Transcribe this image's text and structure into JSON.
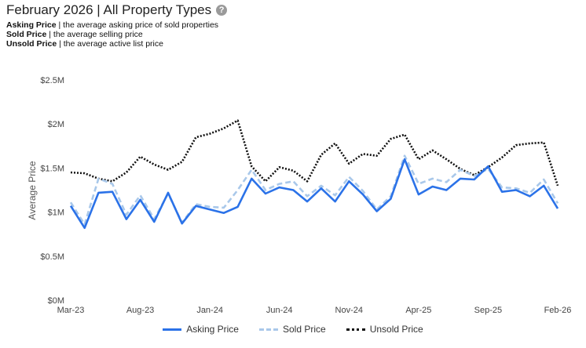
{
  "header": {
    "title": "February 2026 | All Property Types",
    "help_icon": "question-circle-icon"
  },
  "definitions": [
    {
      "term": "Asking Price",
      "desc": " | the average asking price of sold properties"
    },
    {
      "term": "Sold Price",
      "desc": " | the average selling price"
    },
    {
      "term": "Unsold Price",
      "desc": " | the average active list price"
    }
  ],
  "chart_data": {
    "type": "line",
    "ylabel": "Average Price",
    "ylim": [
      0,
      2500000
    ],
    "y_ticks": [
      {
        "value": 0,
        "label": "$0M"
      },
      {
        "value": 500000,
        "label": "$0.5M"
      },
      {
        "value": 1000000,
        "label": "$1M"
      },
      {
        "value": 1500000,
        "label": "$1.5M"
      },
      {
        "value": 2000000,
        "label": "$2M"
      },
      {
        "value": 2500000,
        "label": "$2.5M"
      }
    ],
    "x": [
      "Mar-23",
      "Apr-23",
      "May-23",
      "Jun-23",
      "Jul-23",
      "Aug-23",
      "Sep-23",
      "Oct-23",
      "Nov-23",
      "Dec-23",
      "Jan-24",
      "Feb-24",
      "Mar-24",
      "Apr-24",
      "May-24",
      "Jun-24",
      "Jul-24",
      "Aug-24",
      "Sep-24",
      "Oct-24",
      "Nov-24",
      "Dec-24",
      "Jan-25",
      "Feb-25",
      "Mar-25",
      "Apr-25",
      "May-25",
      "Jun-25",
      "Jul-25",
      "Aug-25",
      "Sep-25",
      "Oct-25",
      "Nov-25",
      "Dec-25",
      "Jan-26",
      "Feb-26"
    ],
    "x_tick_labels": [
      "Mar-23",
      "Aug-23",
      "Jan-24",
      "Jun-24",
      "Nov-24",
      "Apr-25",
      "Sep-25",
      "Feb-26"
    ],
    "series": [
      {
        "name": "Asking Price",
        "color": "#2b72e8",
        "style": "solid",
        "values": [
          1070000,
          820000,
          1220000,
          1230000,
          920000,
          1140000,
          890000,
          1220000,
          870000,
          1070000,
          1030000,
          990000,
          1060000,
          1380000,
          1210000,
          1280000,
          1250000,
          1120000,
          1270000,
          1120000,
          1350000,
          1200000,
          1010000,
          1150000,
          1600000,
          1200000,
          1290000,
          1250000,
          1380000,
          1370000,
          1520000,
          1230000,
          1250000,
          1180000,
          1300000,
          1040000
        ]
      },
      {
        "name": "Sold Price",
        "color": "#a9c8ea",
        "style": "dashed",
        "values": [
          1110000,
          860000,
          1380000,
          1320000,
          970000,
          1190000,
          920000,
          1210000,
          880000,
          1090000,
          1060000,
          1050000,
          1250000,
          1480000,
          1250000,
          1320000,
          1350000,
          1180000,
          1300000,
          1190000,
          1400000,
          1240000,
          1030000,
          1180000,
          1640000,
          1320000,
          1380000,
          1340000,
          1480000,
          1410000,
          1490000,
          1280000,
          1270000,
          1220000,
          1370000,
          1100000
        ]
      },
      {
        "name": "Unsold Price",
        "color": "#111111",
        "style": "dotted",
        "values": [
          1450000,
          1440000,
          1380000,
          1350000,
          1450000,
          1630000,
          1540000,
          1480000,
          1570000,
          1850000,
          1890000,
          1950000,
          2040000,
          1520000,
          1350000,
          1510000,
          1470000,
          1350000,
          1650000,
          1780000,
          1550000,
          1660000,
          1640000,
          1830000,
          1880000,
          1600000,
          1700000,
          1600000,
          1490000,
          1420000,
          1510000,
          1620000,
          1760000,
          1780000,
          1790000,
          1300000
        ]
      }
    ],
    "legend_position": "bottom"
  }
}
